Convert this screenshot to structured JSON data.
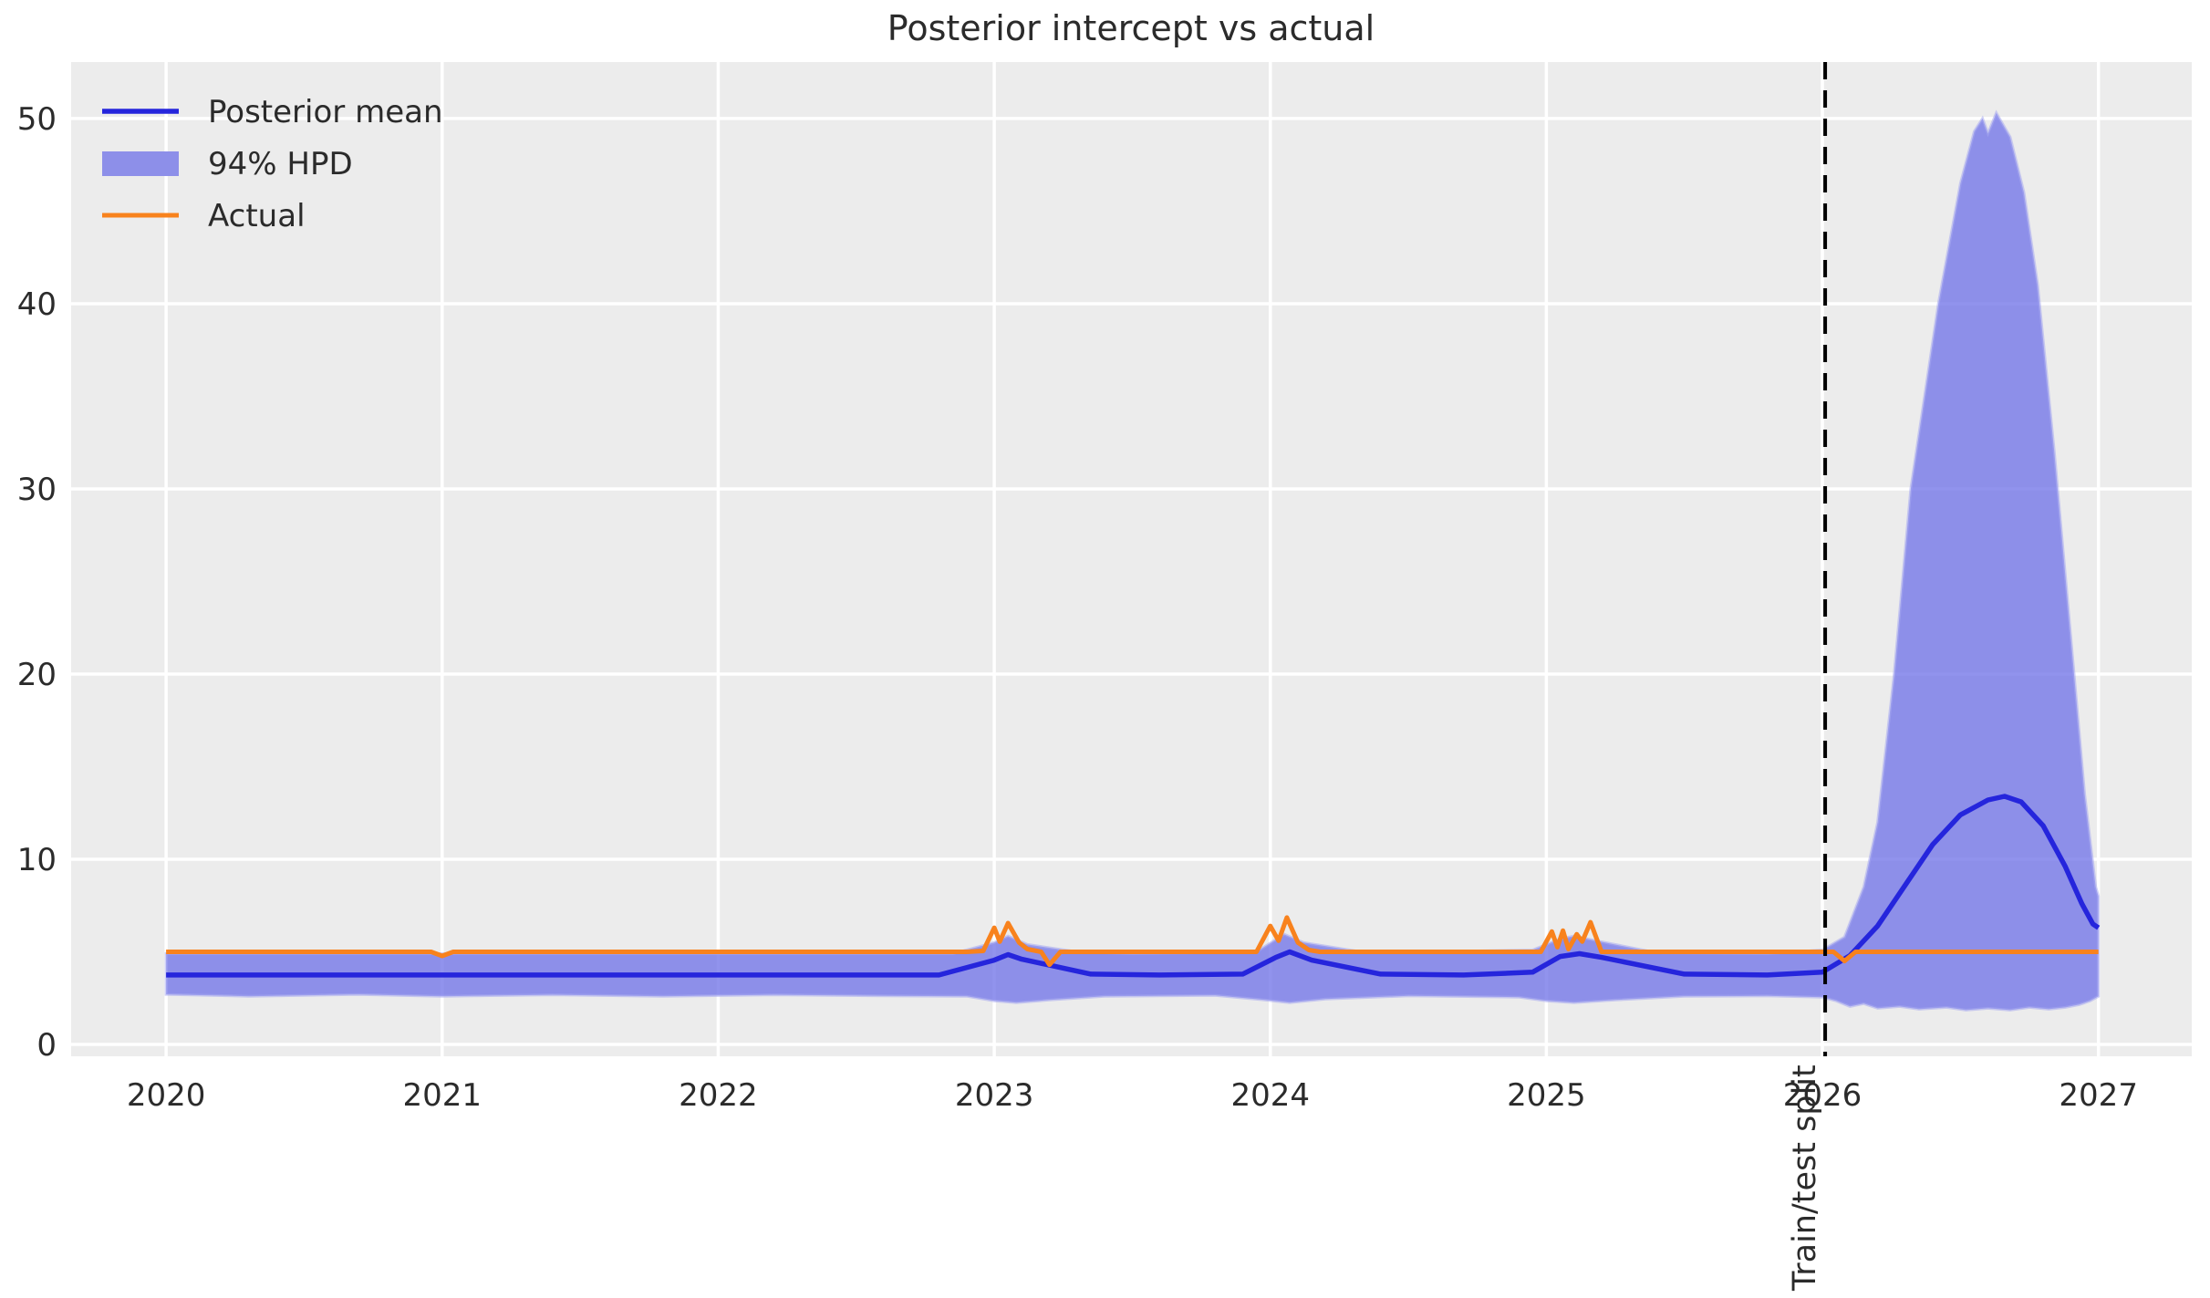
{
  "figure": {
    "title": "Posterior intercept vs actual"
  },
  "legend": {
    "position": "upper-left",
    "items": [
      {
        "label": "Posterior mean",
        "swatch": "line",
        "color": "#2525dc"
      },
      {
        "label": "94% HPD",
        "swatch": "patch",
        "color": "#8d8fe9"
      },
      {
        "label": "Actual",
        "swatch": "line",
        "color": "#f8821d"
      }
    ]
  },
  "annotation": {
    "train_test_split_label": "Train/test split"
  },
  "colors": {
    "plot_background": "#ececec",
    "gridline": "#ffffff",
    "posterior_mean": "#2525dc",
    "hpd_band": "#7678e8",
    "actual": "#f8821d",
    "split_line": "#000000",
    "text": "#2b2b2b"
  },
  "chart_data": {
    "type": "line",
    "title": "Posterior intercept vs actual",
    "xlabel": "",
    "ylabel": "",
    "x_ticks": [
      2020,
      2021,
      2022,
      2023,
      2024,
      2025,
      2026,
      2027
    ],
    "y_ticks": [
      0,
      10,
      20,
      30,
      40,
      50
    ],
    "xlim": [
      2019.656,
      2027.338
    ],
    "ylim": [
      -0.64,
      53.05
    ],
    "grid": true,
    "legend_position": "upper-left",
    "train_test_split_x": 2026.01,
    "series": [
      {
        "name": "94% HPD",
        "type": "band",
        "color": "#7678e8",
        "opacity": 0.8,
        "upper": [
          [
            2020,
            4.9
          ],
          [
            2022.85,
            4.9
          ],
          [
            2023.0,
            5.5
          ],
          [
            2023.05,
            5.85
          ],
          [
            2023.12,
            5.4
          ],
          [
            2023.3,
            5.0
          ],
          [
            2023.5,
            4.9
          ],
          [
            2023.95,
            5.0
          ],
          [
            2024.05,
            5.95
          ],
          [
            2024.12,
            5.5
          ],
          [
            2024.35,
            4.95
          ],
          [
            2024.95,
            5.1
          ],
          [
            2025.05,
            5.7
          ],
          [
            2025.1,
            5.85
          ],
          [
            2025.18,
            5.6
          ],
          [
            2025.4,
            4.95
          ],
          [
            2025.8,
            4.9
          ],
          [
            2026.0,
            5.1
          ],
          [
            2026.08,
            5.8
          ],
          [
            2026.15,
            8.5
          ],
          [
            2026.2,
            12
          ],
          [
            2026.26,
            20
          ],
          [
            2026.32,
            30
          ],
          [
            2026.42,
            40
          ],
          [
            2026.5,
            46.5
          ],
          [
            2026.55,
            49.3
          ],
          [
            2026.58,
            50.0
          ],
          [
            2026.6,
            49.2
          ],
          [
            2026.63,
            50.3
          ],
          [
            2026.68,
            49.0
          ],
          [
            2026.73,
            46
          ],
          [
            2026.78,
            41
          ],
          [
            2026.84,
            32
          ],
          [
            2026.9,
            22
          ],
          [
            2026.95,
            13.5
          ],
          [
            2026.99,
            8.5
          ],
          [
            2027.0,
            8.0
          ]
        ],
        "lower": [
          [
            2020,
            2.7
          ],
          [
            2020.3,
            2.6
          ],
          [
            2020.7,
            2.7
          ],
          [
            2021.0,
            2.6
          ],
          [
            2021.4,
            2.68
          ],
          [
            2021.8,
            2.6
          ],
          [
            2022.2,
            2.68
          ],
          [
            2022.6,
            2.62
          ],
          [
            2022.9,
            2.6
          ],
          [
            2023.0,
            2.35
          ],
          [
            2023.08,
            2.25
          ],
          [
            2023.2,
            2.4
          ],
          [
            2023.4,
            2.6
          ],
          [
            2023.8,
            2.65
          ],
          [
            2023.98,
            2.4
          ],
          [
            2024.07,
            2.25
          ],
          [
            2024.2,
            2.45
          ],
          [
            2024.5,
            2.62
          ],
          [
            2024.9,
            2.55
          ],
          [
            2025.0,
            2.35
          ],
          [
            2025.1,
            2.25
          ],
          [
            2025.25,
            2.4
          ],
          [
            2025.5,
            2.6
          ],
          [
            2025.8,
            2.62
          ],
          [
            2026.0,
            2.55
          ],
          [
            2026.05,
            2.35
          ],
          [
            2026.1,
            2.05
          ],
          [
            2026.15,
            2.2
          ],
          [
            2026.2,
            1.95
          ],
          [
            2026.28,
            2.05
          ],
          [
            2026.35,
            1.9
          ],
          [
            2026.45,
            2.0
          ],
          [
            2026.52,
            1.85
          ],
          [
            2026.6,
            1.95
          ],
          [
            2026.68,
            1.85
          ],
          [
            2026.75,
            2.0
          ],
          [
            2026.82,
            1.9
          ],
          [
            2026.88,
            2.0
          ],
          [
            2026.93,
            2.15
          ],
          [
            2026.97,
            2.35
          ],
          [
            2027.0,
            2.6
          ]
        ]
      },
      {
        "name": "Posterior mean",
        "type": "line",
        "color": "#2525dc",
        "points": [
          [
            2020,
            3.75
          ],
          [
            2022.8,
            3.75
          ],
          [
            2023.0,
            4.55
          ],
          [
            2023.05,
            4.85
          ],
          [
            2023.1,
            4.6
          ],
          [
            2023.35,
            3.8
          ],
          [
            2023.6,
            3.75
          ],
          [
            2023.9,
            3.8
          ],
          [
            2024.02,
            4.7
          ],
          [
            2024.07,
            5.0
          ],
          [
            2024.15,
            4.55
          ],
          [
            2024.4,
            3.8
          ],
          [
            2024.7,
            3.75
          ],
          [
            2024.95,
            3.9
          ],
          [
            2025.05,
            4.75
          ],
          [
            2025.12,
            4.9
          ],
          [
            2025.2,
            4.7
          ],
          [
            2025.5,
            3.8
          ],
          [
            2025.8,
            3.75
          ],
          [
            2026.0,
            3.9
          ],
          [
            2026.1,
            4.8
          ],
          [
            2026.2,
            6.4
          ],
          [
            2026.3,
            8.6
          ],
          [
            2026.4,
            10.8
          ],
          [
            2026.5,
            12.4
          ],
          [
            2026.6,
            13.2
          ],
          [
            2026.66,
            13.4
          ],
          [
            2026.72,
            13.1
          ],
          [
            2026.8,
            11.8
          ],
          [
            2026.88,
            9.6
          ],
          [
            2026.94,
            7.6
          ],
          [
            2026.98,
            6.5
          ],
          [
            2027.0,
            6.3
          ]
        ]
      },
      {
        "name": "Actual",
        "type": "line",
        "color": "#f8821d",
        "points": [
          [
            2020.0,
            5
          ],
          [
            2020.96,
            5
          ],
          [
            2021.0,
            4.78
          ],
          [
            2021.04,
            5
          ],
          [
            2022.9,
            5
          ],
          [
            2022.96,
            5.05
          ],
          [
            2023.0,
            6.3
          ],
          [
            2023.02,
            5.55
          ],
          [
            2023.05,
            6.55
          ],
          [
            2023.09,
            5.5
          ],
          [
            2023.12,
            5.15
          ],
          [
            2023.17,
            5.0
          ],
          [
            2023.2,
            4.3
          ],
          [
            2023.24,
            5.0
          ],
          [
            2023.95,
            5
          ],
          [
            2024.0,
            6.4
          ],
          [
            2024.03,
            5.6
          ],
          [
            2024.06,
            6.85
          ],
          [
            2024.1,
            5.5
          ],
          [
            2024.14,
            5.1
          ],
          [
            2024.18,
            5
          ],
          [
            2024.98,
            5
          ],
          [
            2025.02,
            6.1
          ],
          [
            2025.04,
            5.25
          ],
          [
            2025.06,
            6.15
          ],
          [
            2025.08,
            5.15
          ],
          [
            2025.11,
            5.95
          ],
          [
            2025.13,
            5.55
          ],
          [
            2025.16,
            6.6
          ],
          [
            2025.2,
            5.0
          ],
          [
            2026.04,
            5
          ],
          [
            2026.08,
            4.5
          ],
          [
            2026.12,
            5
          ],
          [
            2027.0,
            5
          ]
        ]
      }
    ]
  }
}
